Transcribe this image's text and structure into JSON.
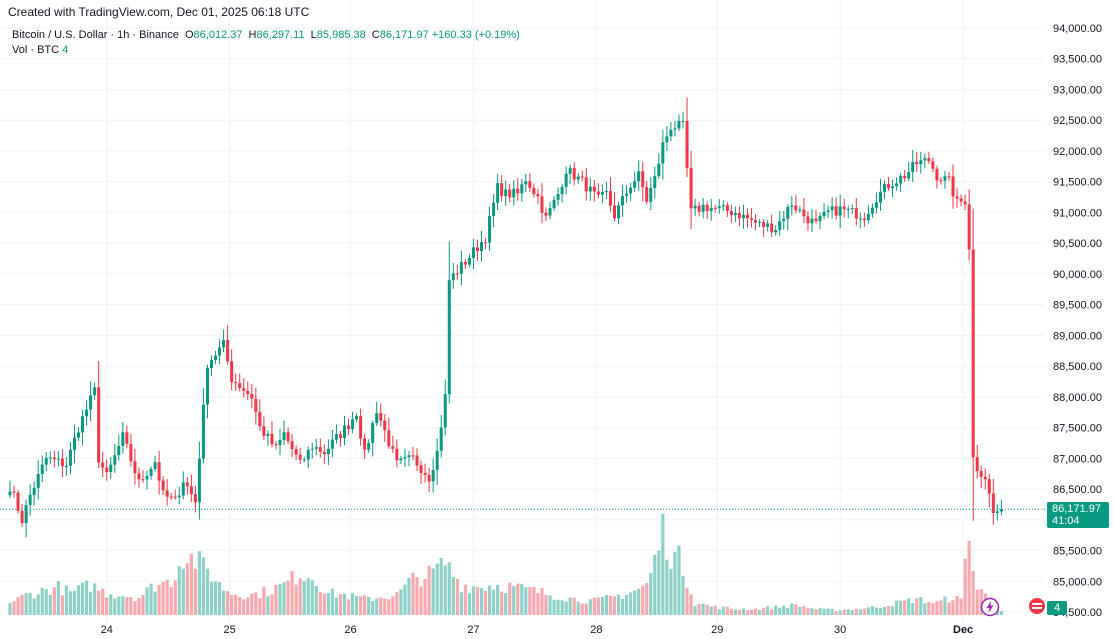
{
  "header": {
    "created_with": "Created with TradingView.com, Dec 01, 2025 06:18 UTC"
  },
  "legend": {
    "symbol": "Bitcoin / U.S. Dollar · 1h · Binance",
    "o_label": "O",
    "o_value": "86,012.37",
    "h_label": "H",
    "h_value": "86,297.11",
    "l_label": "L",
    "l_value": "85,985.38",
    "c_label": "C",
    "c_value": "86,171.97",
    "change": "+160.33 (+0.19%)",
    "vol_label": "Vol · BTC",
    "vol_value": "4"
  },
  "price_tag": {
    "price": "86,171.97",
    "countdown": "41:04"
  },
  "volume_tag": "4",
  "colors": {
    "up": "#089981",
    "down": "#F23645",
    "up_volume": "#8FD1C6",
    "down_volume": "#F7A9AF",
    "grid": "#F0F3FA"
  },
  "icons": [
    "lightning-icon",
    "flag-icon"
  ],
  "chart_data": {
    "type": "candlestick",
    "xlabel": "",
    "ylabel": "",
    "ylim": [
      84500,
      94000
    ],
    "y_ticks": [
      "94,000.00",
      "93,500.00",
      "93,000.00",
      "92,500.00",
      "92,000.00",
      "91,500.00",
      "91,000.00",
      "90,500.00",
      "90,000.00",
      "89,500.00",
      "89,000.00",
      "88,500.00",
      "88,000.00",
      "87,500.00",
      "87,000.00",
      "86,500.00",
      "86,000.00",
      "85,500.00",
      "85,000.00",
      "84,500.00"
    ],
    "x_ticks": [
      "24",
      "25",
      "26",
      "27",
      "28",
      "29",
      "30",
      "Dec"
    ],
    "last_price": 86171.97,
    "anchors": [
      [
        0,
        86550
      ],
      [
        3,
        86000
      ],
      [
        5,
        86400
      ],
      [
        9,
        87000
      ],
      [
        14,
        86900
      ],
      [
        17,
        87500
      ],
      [
        21,
        88100
      ],
      [
        22,
        87000
      ],
      [
        24,
        86700
      ],
      [
        28,
        87350
      ],
      [
        32,
        86600
      ],
      [
        36,
        86950
      ],
      [
        38,
        86400
      ],
      [
        41,
        86300
      ],
      [
        43,
        86650
      ],
      [
        46,
        86300
      ],
      [
        49,
        88550
      ],
      [
        53,
        88850
      ],
      [
        55,
        88300
      ],
      [
        60,
        88000
      ],
      [
        62,
        87500
      ],
      [
        66,
        87150
      ],
      [
        68,
        87400
      ],
      [
        72,
        86900
      ],
      [
        75,
        87200
      ],
      [
        78,
        87100
      ],
      [
        84,
        87550
      ],
      [
        86,
        87750
      ],
      [
        88,
        87050
      ],
      [
        91,
        87800
      ],
      [
        96,
        86900
      ],
      [
        100,
        87000
      ],
      [
        104,
        86700
      ],
      [
        106,
        87100
      ],
      [
        108,
        88000
      ],
      [
        109,
        89900
      ],
      [
        113,
        90200
      ],
      [
        118,
        90600
      ],
      [
        121,
        91400
      ],
      [
        123,
        91300
      ],
      [
        126,
        91300
      ],
      [
        128,
        91550
      ],
      [
        131,
        91250
      ],
      [
        133,
        90900
      ],
      [
        136,
        91300
      ],
      [
        138,
        91700
      ],
      [
        142,
        91500
      ],
      [
        146,
        91200
      ],
      [
        148,
        91300
      ],
      [
        150,
        90950
      ],
      [
        154,
        91450
      ],
      [
        156,
        91600
      ],
      [
        158,
        91200
      ],
      [
        160,
        91550
      ],
      [
        162,
        92100
      ],
      [
        164,
        92400
      ],
      [
        167,
        92400
      ],
      [
        169,
        91000
      ],
      [
        172,
        91100
      ],
      [
        176,
        91050
      ],
      [
        180,
        91000
      ],
      [
        183,
        90900
      ],
      [
        186,
        90800
      ],
      [
        190,
        90750
      ],
      [
        194,
        91150
      ],
      [
        197,
        90950
      ],
      [
        200,
        90800
      ],
      [
        203,
        91000
      ],
      [
        206,
        91050
      ],
      [
        209,
        91000
      ],
      [
        212,
        90950
      ],
      [
        215,
        91250
      ],
      [
        218,
        91450
      ],
      [
        222,
        91600
      ],
      [
        225,
        91800
      ],
      [
        228,
        91850
      ],
      [
        230,
        91600
      ],
      [
        233,
        91500
      ],
      [
        235,
        91150
      ],
      [
        237,
        91200
      ],
      [
        238,
        90450
      ],
      [
        239,
        87000
      ],
      [
        240,
        86850
      ],
      [
        242,
        86700
      ],
      [
        244,
        86100
      ],
      [
        246,
        86180
      ]
    ],
    "volume_anchors": [
      [
        0,
        12
      ],
      [
        4,
        20
      ],
      [
        8,
        24
      ],
      [
        12,
        28
      ],
      [
        15,
        22
      ],
      [
        20,
        30
      ],
      [
        24,
        22
      ],
      [
        28,
        20
      ],
      [
        32,
        18
      ],
      [
        36,
        30
      ],
      [
        40,
        34
      ],
      [
        43,
        60
      ],
      [
        46,
        55
      ],
      [
        49,
        45
      ],
      [
        52,
        30
      ],
      [
        55,
        22
      ],
      [
        60,
        20
      ],
      [
        64,
        24
      ],
      [
        68,
        30
      ],
      [
        72,
        42
      ],
      [
        75,
        38
      ],
      [
        79,
        22
      ],
      [
        83,
        20
      ],
      [
        88,
        16
      ],
      [
        92,
        18
      ],
      [
        96,
        20
      ],
      [
        100,
        36
      ],
      [
        104,
        40
      ],
      [
        108,
        52
      ],
      [
        112,
        30
      ],
      [
        116,
        28
      ],
      [
        120,
        30
      ],
      [
        125,
        28
      ],
      [
        130,
        24
      ],
      [
        135,
        20
      ],
      [
        140,
        16
      ],
      [
        145,
        14
      ],
      [
        150,
        18
      ],
      [
        155,
        24
      ],
      [
        158,
        30
      ],
      [
        160,
        54
      ],
      [
        162,
        86
      ],
      [
        164,
        60
      ],
      [
        166,
        56
      ],
      [
        168,
        36
      ],
      [
        170,
        12
      ],
      [
        175,
        8
      ],
      [
        180,
        6
      ],
      [
        185,
        6
      ],
      [
        190,
        8
      ],
      [
        195,
        10
      ],
      [
        200,
        6
      ],
      [
        205,
        5
      ],
      [
        210,
        6
      ],
      [
        215,
        8
      ],
      [
        220,
        12
      ],
      [
        225,
        16
      ],
      [
        230,
        12
      ],
      [
        234,
        18
      ],
      [
        236,
        14
      ],
      [
        238,
        92
      ],
      [
        239,
        44
      ],
      [
        240,
        26
      ],
      [
        242,
        20
      ],
      [
        244,
        14
      ],
      [
        246,
        4
      ]
    ],
    "num_candles": 247
  }
}
